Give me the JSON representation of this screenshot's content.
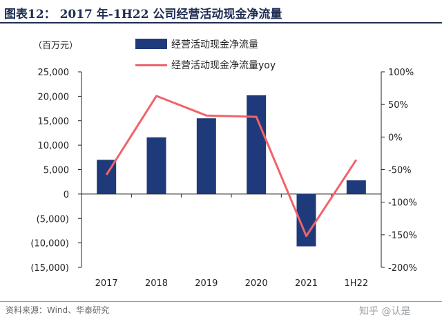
{
  "header": {
    "title": "图表12： 2017 年-1H22 公司经营活动现金净流量"
  },
  "unit_label": "（百万元）",
  "legend": {
    "bar_label": "经营活动现金净流量",
    "line_label": "经营活动现金净流量yoy"
  },
  "footer": {
    "source": "资料来源：Wind、华泰研究",
    "watermark": "知乎 @认是"
  },
  "colors": {
    "bar": "#1f3a7a",
    "line": "#f0636a",
    "title": "#1f2d52"
  },
  "chart_data": {
    "type": "bar",
    "categories": [
      "2017",
      "2018",
      "2019",
      "2020",
      "2021",
      "1H22"
    ],
    "series": [
      {
        "name": "经营活动现金净流量",
        "type": "bar",
        "axis": "left",
        "values": [
          7000,
          11600,
          15500,
          20200,
          -10700,
          2800
        ]
      },
      {
        "name": "经营活动现金净流量yoy",
        "type": "line",
        "axis": "right",
        "values": [
          -58,
          63,
          33,
          31,
          -152,
          -35
        ]
      }
    ],
    "y_left": {
      "min": -15000,
      "max": 25000,
      "step": 5000,
      "tick_labels": [
        "(15,000)",
        "(10,000)",
        "(5,000)",
        "0",
        "5,000",
        "10,000",
        "15,000",
        "20,000",
        "25,000"
      ]
    },
    "y_right": {
      "min": -200,
      "max": 100,
      "step": 50,
      "tick_labels": [
        "-200%",
        "-150%",
        "-100%",
        "-50%",
        "0%",
        "50%",
        "100%"
      ]
    },
    "grid": false,
    "legend_position": "top-center"
  }
}
